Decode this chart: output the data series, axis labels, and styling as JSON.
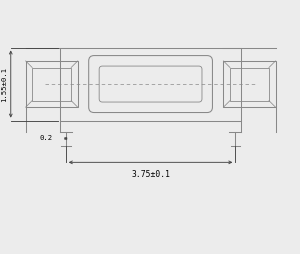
{
  "bg_color": "#ececec",
  "line_color": "#888888",
  "dark_line": "#444444",
  "fig_width": 3.0,
  "fig_height": 2.54,
  "dpi": 100,
  "annotations": {
    "height_label": "1.55±0.1",
    "width_label": "3.75±0.1",
    "small_label": "0.2"
  },
  "xlim": [
    0,
    10
  ],
  "ylim": [
    0,
    8.47
  ]
}
